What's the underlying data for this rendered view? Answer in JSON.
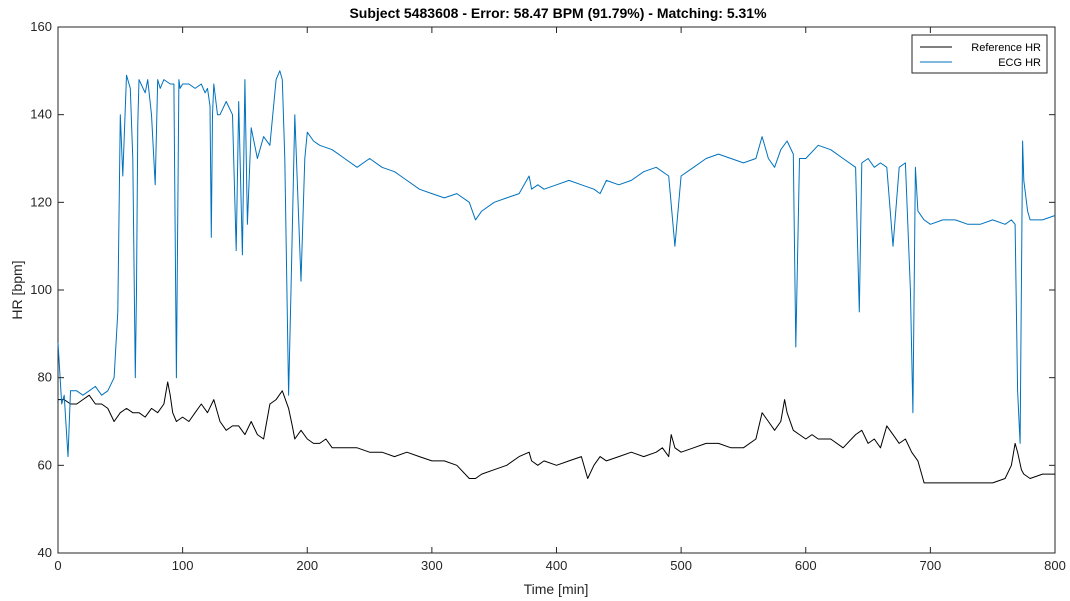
{
  "chart_data": {
    "type": "line",
    "title": "Subject 5483608 - Error: 58.47 BPM (91.79%) - Matching: 5.31%",
    "xlabel": "Time [min]",
    "ylabel": "HR [bpm]",
    "xlim": [
      0,
      800
    ],
    "ylim": [
      40,
      160
    ],
    "xticks": [
      "0",
      "100",
      "200",
      "300",
      "400",
      "500",
      "600",
      "700",
      "800"
    ],
    "yticks": [
      "40",
      "60",
      "80",
      "100",
      "120",
      "140",
      "160"
    ],
    "grid": false,
    "legend_position": "top-right",
    "series": [
      {
        "name": "Reference HR",
        "color": "#000000",
        "x": [
          0,
          5,
          10,
          15,
          20,
          25,
          30,
          35,
          40,
          45,
          50,
          55,
          60,
          65,
          70,
          75,
          80,
          85,
          88,
          90,
          92,
          95,
          100,
          105,
          110,
          115,
          120,
          125,
          130,
          135,
          140,
          145,
          150,
          155,
          160,
          165,
          170,
          175,
          180,
          185,
          188,
          190,
          195,
          200,
          205,
          210,
          215,
          220,
          225,
          230,
          240,
          250,
          260,
          270,
          280,
          290,
          300,
          310,
          320,
          330,
          335,
          340,
          350,
          360,
          370,
          378,
          380,
          385,
          390,
          400,
          410,
          420,
          425,
          430,
          435,
          440,
          450,
          460,
          470,
          480,
          485,
          490,
          492,
          495,
          500,
          510,
          520,
          530,
          540,
          550,
          560,
          565,
          570,
          575,
          580,
          583,
          585,
          590,
          595,
          600,
          605,
          610,
          620,
          630,
          640,
          645,
          650,
          655,
          660,
          665,
          670,
          675,
          680,
          685,
          690,
          695,
          700,
          710,
          720,
          730,
          740,
          750,
          760,
          765,
          768,
          770,
          773,
          775,
          780,
          790,
          800
        ],
        "y": [
          75,
          75,
          74,
          74,
          75,
          76,
          74,
          74,
          73,
          70,
          72,
          73,
          72,
          72,
          71,
          73,
          72,
          74,
          79,
          76,
          72,
          70,
          71,
          70,
          72,
          74,
          72,
          75,
          70,
          68,
          69,
          69,
          67,
          70,
          67,
          66,
          74,
          75,
          77,
          73,
          69,
          66,
          68,
          66,
          65,
          65,
          66,
          64,
          64,
          64,
          64,
          63,
          63,
          62,
          63,
          62,
          61,
          61,
          60,
          57,
          57,
          58,
          59,
          60,
          62,
          63,
          61,
          60,
          61,
          60,
          61,
          62,
          57,
          60,
          62,
          61,
          62,
          63,
          62,
          63,
          64,
          62,
          67,
          64,
          63,
          64,
          65,
          65,
          64,
          64,
          66,
          72,
          70,
          68,
          70,
          75,
          72,
          68,
          67,
          66,
          67,
          66,
          66,
          64,
          67,
          68,
          65,
          66,
          64,
          69,
          67,
          65,
          66,
          63,
          61,
          56,
          56,
          56,
          56,
          56,
          56,
          56,
          57,
          60,
          65,
          63,
          59,
          58,
          57,
          58,
          58
        ]
      },
      {
        "name": "ECG HR",
        "color": "#0072bd",
        "x": [
          0,
          3,
          5,
          8,
          10,
          15,
          20,
          25,
          30,
          35,
          40,
          45,
          48,
          50,
          52,
          55,
          58,
          60,
          62,
          63,
          64,
          65,
          70,
          72,
          75,
          78,
          80,
          82,
          85,
          90,
          93,
          95,
          97,
          98,
          100,
          105,
          110,
          115,
          118,
          120,
          122,
          123,
          124,
          125,
          128,
          130,
          135,
          140,
          143,
          145,
          148,
          150,
          152,
          155,
          160,
          165,
          170,
          175,
          178,
          180,
          182,
          185,
          187,
          190,
          195,
          198,
          200,
          205,
          210,
          220,
          230,
          240,
          250,
          260,
          270,
          275,
          280,
          290,
          300,
          310,
          320,
          330,
          335,
          340,
          350,
          360,
          370,
          378,
          380,
          385,
          390,
          400,
          410,
          420,
          430,
          435,
          440,
          450,
          460,
          470,
          480,
          490,
          495,
          500,
          510,
          520,
          530,
          540,
          550,
          560,
          565,
          570,
          575,
          580,
          585,
          590,
          592,
          595,
          600,
          610,
          620,
          630,
          640,
          643,
          645,
          650,
          655,
          660,
          665,
          670,
          675,
          680,
          684,
          686,
          688,
          690,
          695,
          700,
          710,
          720,
          730,
          740,
          750,
          760,
          765,
          768,
          770,
          772,
          774,
          775,
          778,
          780,
          790,
          800
        ],
        "y": [
          88,
          74,
          76,
          62,
          77,
          77,
          76,
          77,
          78,
          76,
          77,
          80,
          95,
          140,
          126,
          149,
          146,
          130,
          80,
          100,
          138,
          148,
          145,
          148,
          140,
          124,
          148,
          146,
          148,
          147,
          147,
          80,
          148,
          146,
          147,
          147,
          146,
          147,
          145,
          146,
          142,
          112,
          140,
          147,
          140,
          140,
          143,
          140,
          109,
          143,
          108,
          148,
          115,
          137,
          130,
          135,
          133,
          148,
          150,
          148,
          130,
          76,
          100,
          140,
          102,
          130,
          136,
          134,
          133,
          132,
          130,
          128,
          130,
          128,
          127,
          126,
          125,
          123,
          122,
          121,
          122,
          120,
          116,
          118,
          120,
          121,
          122,
          126,
          123,
          124,
          123,
          124,
          125,
          124,
          123,
          122,
          125,
          124,
          125,
          127,
          128,
          126,
          110,
          126,
          128,
          130,
          131,
          130,
          129,
          130,
          135,
          130,
          128,
          132,
          134,
          131,
          87,
          130,
          130,
          133,
          132,
          130,
          128,
          95,
          129,
          130,
          128,
          129,
          128,
          110,
          128,
          129,
          100,
          72,
          128,
          118,
          116,
          115,
          116,
          116,
          115,
          115,
          116,
          115,
          116,
          115,
          77,
          65,
          134,
          125,
          118,
          116,
          116,
          117
        ]
      }
    ]
  }
}
